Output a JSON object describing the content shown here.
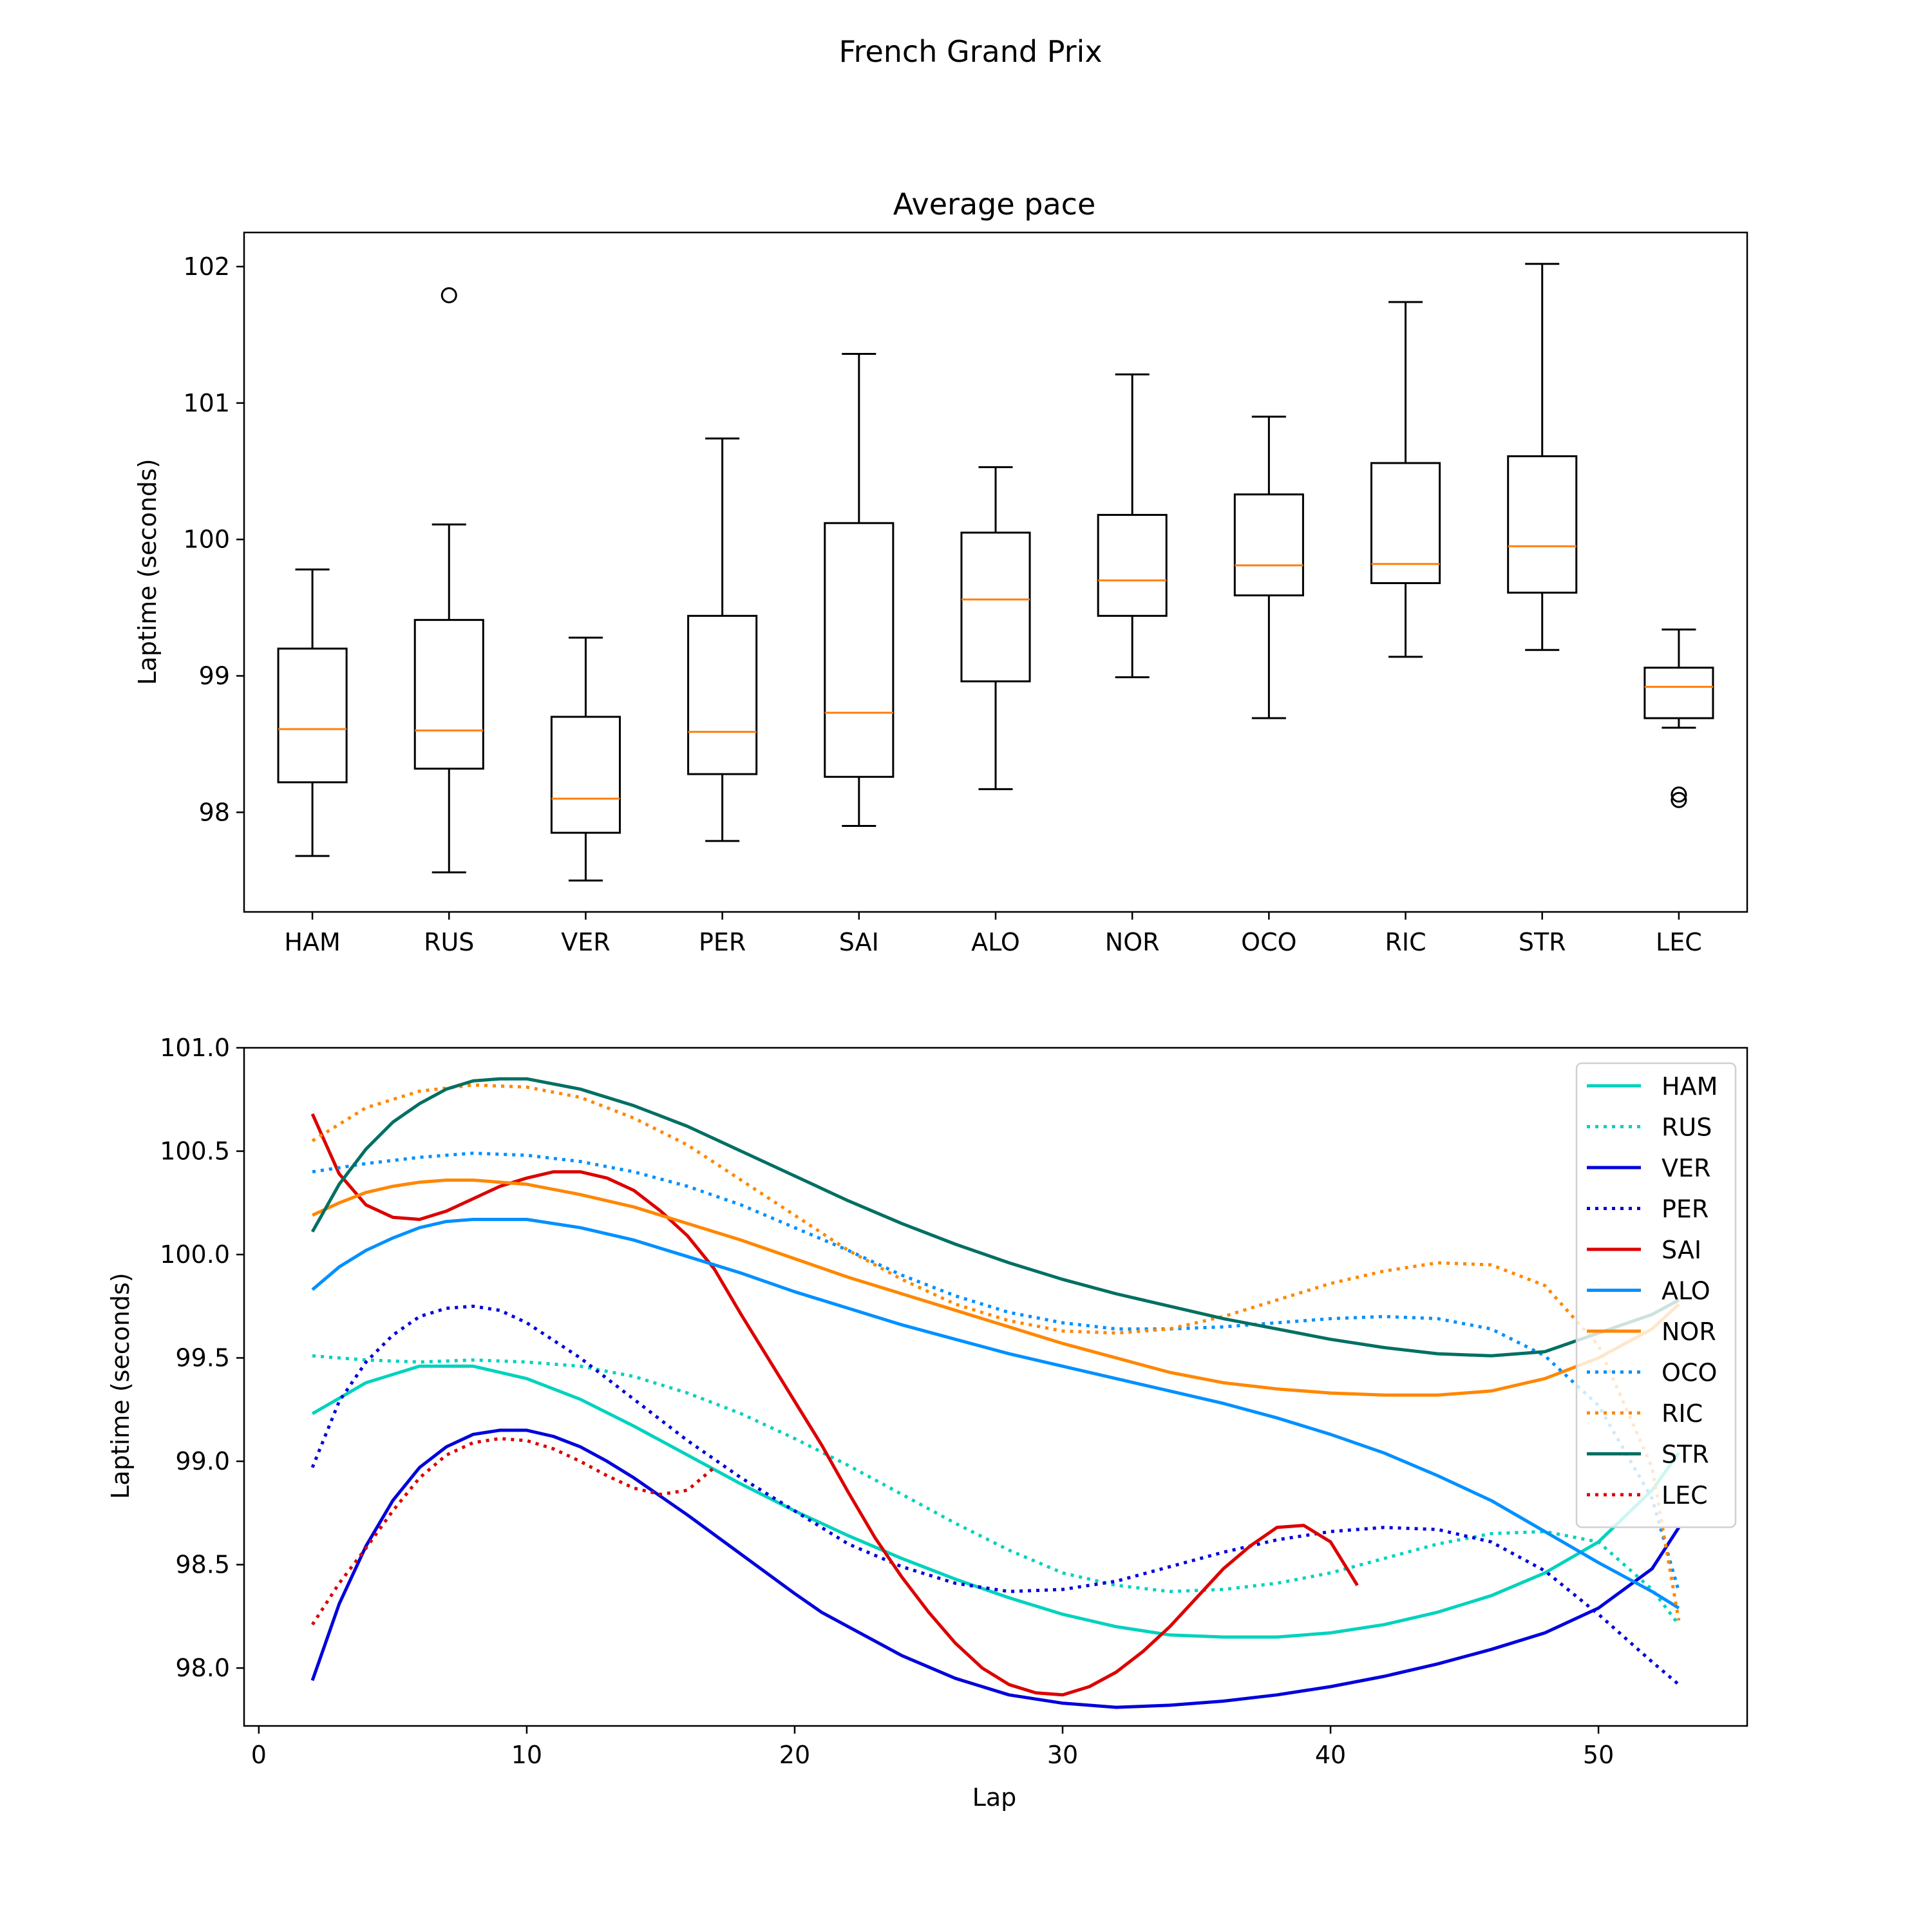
{
  "figure": {
    "suptitle": "French Grand Prix"
  },
  "chart_data": [
    {
      "type": "box",
      "title": "Average pace",
      "xlabel": "",
      "ylabel": "Laptime (seconds)",
      "ylim": [
        97.27,
        102.25
      ],
      "yticks": [
        98,
        99,
        100,
        101,
        102
      ],
      "box_color": "#000000",
      "median_color": "#ff7f0e",
      "categories": [
        "HAM",
        "RUS",
        "VER",
        "PER",
        "SAI",
        "ALO",
        "NOR",
        "OCO",
        "RIC",
        "STR",
        "LEC"
      ],
      "boxes": [
        {
          "name": "HAM",
          "whisker_low": 97.68,
          "q1": 98.22,
          "median": 98.61,
          "q3": 99.2,
          "whisker_high": 99.78,
          "outliers": []
        },
        {
          "name": "RUS",
          "whisker_low": 97.56,
          "q1": 98.32,
          "median": 98.6,
          "q3": 99.41,
          "whisker_high": 100.11,
          "outliers": [
            101.79
          ]
        },
        {
          "name": "VER",
          "whisker_low": 97.5,
          "q1": 97.85,
          "median": 98.1,
          "q3": 98.7,
          "whisker_high": 99.28,
          "outliers": []
        },
        {
          "name": "PER",
          "whisker_low": 97.79,
          "q1": 98.28,
          "median": 98.59,
          "q3": 99.44,
          "whisker_high": 100.74,
          "outliers": []
        },
        {
          "name": "SAI",
          "whisker_low": 97.9,
          "q1": 98.26,
          "median": 98.73,
          "q3": 100.12,
          "whisker_high": 101.36,
          "outliers": []
        },
        {
          "name": "ALO",
          "whisker_low": 98.17,
          "q1": 98.96,
          "median": 99.56,
          "q3": 100.05,
          "whisker_high": 100.53,
          "outliers": []
        },
        {
          "name": "NOR",
          "whisker_low": 98.99,
          "q1": 99.44,
          "median": 99.7,
          "q3": 100.18,
          "whisker_high": 101.21,
          "outliers": []
        },
        {
          "name": "OCO",
          "whisker_low": 98.69,
          "q1": 99.59,
          "median": 99.81,
          "q3": 100.33,
          "whisker_high": 100.9,
          "outliers": []
        },
        {
          "name": "RIC",
          "whisker_low": 99.14,
          "q1": 99.68,
          "median": 99.82,
          "q3": 100.56,
          "whisker_high": 101.74,
          "outliers": []
        },
        {
          "name": "STR",
          "whisker_low": 99.19,
          "q1": 99.61,
          "median": 99.95,
          "q3": 100.61,
          "whisker_high": 102.02,
          "outliers": []
        },
        {
          "name": "LEC",
          "whisker_low": 98.62,
          "q1": 98.69,
          "median": 98.92,
          "q3": 99.06,
          "whisker_high": 99.34,
          "outliers": [
            98.09,
            98.13
          ]
        }
      ]
    },
    {
      "type": "line",
      "title": "",
      "xlabel": "Lap",
      "ylabel": "Laptime (seconds)",
      "xlim": [
        -0.55,
        55.55
      ],
      "ylim": [
        97.72,
        101.0
      ],
      "xticks": [
        0,
        10,
        20,
        30,
        40,
        50
      ],
      "yticks": [
        "98.0",
        "98.5",
        "99.0",
        "99.5",
        "100.0",
        "100.5",
        "101.0"
      ],
      "legend": "upper right",
      "series": [
        {
          "name": "HAM",
          "color": "#00d2be",
          "style": "solid",
          "x": [
            2,
            4,
            6,
            8,
            10,
            12,
            14,
            16,
            18,
            20,
            22,
            24,
            26,
            28,
            30,
            32,
            34,
            36,
            38,
            40,
            42,
            44,
            46,
            48,
            50,
            52,
            53
          ],
          "y": [
            99.23,
            99.38,
            99.46,
            99.46,
            99.4,
            99.3,
            99.17,
            99.03,
            98.89,
            98.76,
            98.64,
            98.53,
            98.43,
            98.34,
            98.26,
            98.2,
            98.16,
            98.15,
            98.15,
            98.17,
            98.21,
            98.27,
            98.35,
            98.46,
            98.61,
            98.86,
            99.04
          ]
        },
        {
          "name": "RUS",
          "color": "#00d2be",
          "style": "dotted",
          "x": [
            2,
            4,
            6,
            8,
            10,
            12,
            14,
            16,
            18,
            20,
            22,
            24,
            26,
            28,
            30,
            32,
            34,
            36,
            38,
            40,
            42,
            44,
            46,
            48,
            50,
            52,
            53
          ],
          "y": [
            99.51,
            99.49,
            99.48,
            99.49,
            99.48,
            99.46,
            99.41,
            99.33,
            99.23,
            99.11,
            98.98,
            98.84,
            98.7,
            98.57,
            98.46,
            98.4,
            98.37,
            98.38,
            98.41,
            98.46,
            98.53,
            98.6,
            98.65,
            98.66,
            98.61,
            98.38,
            98.21
          ]
        },
        {
          "name": "VER",
          "color": "#0000dc",
          "style": "solid",
          "x": [
            2,
            3,
            4,
            5,
            6,
            7,
            8,
            9,
            10,
            11,
            12,
            13,
            14,
            16,
            18,
            20,
            21,
            22,
            24,
            26,
            28,
            30,
            32,
            34,
            36,
            38,
            40,
            42,
            44,
            46,
            48,
            50,
            52,
            53
          ],
          "y": [
            97.94,
            98.31,
            98.59,
            98.81,
            98.97,
            99.07,
            99.13,
            99.15,
            99.15,
            99.12,
            99.07,
            99.0,
            98.92,
            98.74,
            98.55,
            98.36,
            98.27,
            98.2,
            98.06,
            97.95,
            97.87,
            97.83,
            97.81,
            97.82,
            97.84,
            97.87,
            97.91,
            97.96,
            98.02,
            98.09,
            98.17,
            98.29,
            98.48,
            98.68
          ]
        },
        {
          "name": "PER",
          "color": "#0000dc",
          "style": "dotted",
          "x": [
            2,
            3,
            4,
            5,
            6,
            7,
            8,
            9,
            10,
            12,
            14,
            16,
            18,
            20,
            22,
            24,
            26,
            28,
            30,
            32,
            34,
            36,
            38,
            40,
            42,
            44,
            46,
            48,
            50,
            52,
            53
          ],
          "y": [
            98.97,
            99.29,
            99.48,
            99.61,
            99.7,
            99.74,
            99.75,
            99.73,
            99.67,
            99.5,
            99.3,
            99.1,
            98.92,
            98.76,
            98.6,
            98.49,
            98.41,
            98.37,
            98.38,
            98.42,
            98.49,
            98.56,
            98.62,
            98.66,
            98.68,
            98.67,
            98.61,
            98.47,
            98.26,
            98.03,
            97.92
          ]
        },
        {
          "name": "SAI",
          "color": "#dc0000",
          "style": "solid",
          "x": [
            2,
            3,
            4,
            5,
            6,
            7,
            8,
            9,
            10,
            11,
            12,
            13,
            14,
            15,
            16,
            17,
            18,
            19,
            20,
            21,
            22,
            23,
            24,
            25,
            26,
            27,
            28,
            29,
            30,
            31,
            32,
            33,
            34,
            35,
            36,
            37,
            38,
            39,
            40,
            41
          ],
          "y": [
            100.68,
            100.39,
            100.24,
            100.18,
            100.17,
            100.21,
            100.27,
            100.33,
            100.37,
            100.4,
            100.4,
            100.37,
            100.31,
            100.21,
            100.09,
            99.93,
            99.71,
            99.5,
            99.29,
            99.08,
            98.85,
            98.63,
            98.44,
            98.27,
            98.12,
            98.0,
            97.92,
            97.88,
            97.87,
            97.91,
            97.98,
            98.08,
            98.2,
            98.34,
            98.48,
            98.59,
            98.68,
            98.69,
            98.61,
            98.4
          ]
        },
        {
          "name": "ALO",
          "color": "#0090ff",
          "style": "solid",
          "x": [
            2,
            3,
            4,
            5,
            6,
            7,
            8,
            9,
            10,
            12,
            14,
            16,
            18,
            20,
            22,
            24,
            26,
            28,
            30,
            32,
            34,
            36,
            38,
            40,
            42,
            44,
            46,
            48,
            50,
            52,
            53
          ],
          "y": [
            99.83,
            99.94,
            100.02,
            100.08,
            100.13,
            100.16,
            100.17,
            100.17,
            100.17,
            100.13,
            100.07,
            99.99,
            99.91,
            99.82,
            99.74,
            99.66,
            99.59,
            99.52,
            99.46,
            99.4,
            99.34,
            99.28,
            99.21,
            99.13,
            99.04,
            98.93,
            98.81,
            98.66,
            98.51,
            98.37,
            98.29
          ]
        },
        {
          "name": "NOR",
          "color": "#ff8700",
          "style": "solid",
          "x": [
            2,
            3,
            4,
            5,
            6,
            7,
            8,
            9,
            10,
            12,
            14,
            16,
            18,
            20,
            22,
            24,
            26,
            28,
            30,
            32,
            34,
            36,
            38,
            40,
            42,
            44,
            46,
            48,
            50,
            52,
            53
          ],
          "y": [
            100.19,
            100.25,
            100.3,
            100.33,
            100.35,
            100.36,
            100.36,
            100.35,
            100.34,
            100.29,
            100.23,
            100.15,
            100.07,
            99.98,
            99.89,
            99.81,
            99.73,
            99.65,
            99.57,
            99.5,
            99.43,
            99.38,
            99.35,
            99.33,
            99.32,
            99.32,
            99.34,
            99.4,
            99.5,
            99.64,
            99.76
          ]
        },
        {
          "name": "OCO",
          "color": "#0090ff",
          "style": "dotted",
          "x": [
            2,
            4,
            6,
            8,
            10,
            12,
            14,
            16,
            18,
            20,
            22,
            24,
            26,
            28,
            30,
            32,
            34,
            36,
            38,
            40,
            42,
            44,
            46,
            48,
            50,
            52,
            53
          ],
          "y": [
            100.4,
            100.44,
            100.47,
            100.49,
            100.48,
            100.45,
            100.4,
            100.33,
            100.24,
            100.13,
            100.02,
            99.9,
            99.8,
            99.72,
            99.67,
            99.64,
            99.64,
            99.65,
            99.67,
            99.69,
            99.7,
            99.69,
            99.64,
            99.51,
            99.27,
            98.82,
            98.37
          ]
        },
        {
          "name": "RIC",
          "color": "#ff8700",
          "style": "dotted",
          "x": [
            2,
            4,
            6,
            8,
            10,
            12,
            14,
            16,
            18,
            20,
            22,
            24,
            26,
            28,
            30,
            32,
            34,
            36,
            38,
            40,
            42,
            44,
            46,
            48,
            50,
            52,
            53
          ],
          "y": [
            100.55,
            100.71,
            100.79,
            100.82,
            100.81,
            100.76,
            100.66,
            100.53,
            100.36,
            100.19,
            100.02,
            99.88,
            99.76,
            99.68,
            99.63,
            99.62,
            99.64,
            99.7,
            99.78,
            99.86,
            99.92,
            99.96,
            99.95,
            99.85,
            99.56,
            98.97,
            98.23
          ]
        },
        {
          "name": "STR",
          "color": "#006f62",
          "style": "solid",
          "x": [
            2,
            3,
            4,
            5,
            6,
            7,
            8,
            9,
            10,
            12,
            14,
            16,
            18,
            20,
            22,
            24,
            26,
            28,
            30,
            32,
            34,
            36,
            38,
            40,
            42,
            44,
            46,
            48,
            50,
            52,
            53
          ],
          "y": [
            100.11,
            100.34,
            100.51,
            100.64,
            100.73,
            100.8,
            100.84,
            100.85,
            100.85,
            100.8,
            100.72,
            100.62,
            100.5,
            100.38,
            100.26,
            100.15,
            100.05,
            99.96,
            99.88,
            99.81,
            99.75,
            99.69,
            99.64,
            99.59,
            99.55,
            99.52,
            99.51,
            99.53,
            99.62,
            99.71,
            99.78
          ]
        },
        {
          "name": "LEC",
          "color": "#dc0000",
          "style": "dotted",
          "x": [
            2,
            3,
            4,
            5,
            6,
            7,
            8,
            9,
            10,
            11,
            12,
            13,
            14,
            15,
            16,
            17
          ],
          "y": [
            98.21,
            98.41,
            98.58,
            98.76,
            98.92,
            99.03,
            99.09,
            99.11,
            99.1,
            99.06,
            99.0,
            98.93,
            98.87,
            98.84,
            98.86,
            98.97
          ]
        }
      ]
    }
  ]
}
